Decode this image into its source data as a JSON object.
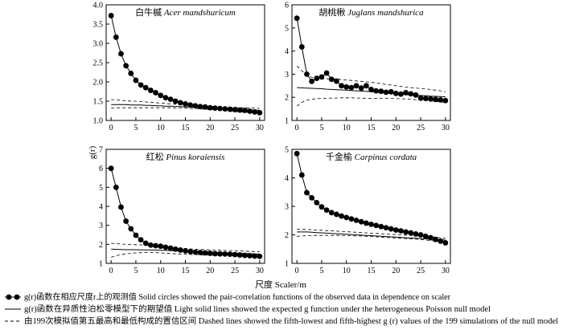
{
  "figure": {
    "y_axis_label": "g(r)",
    "x_axis_label": "尺度 Scaler/m"
  },
  "legend": [
    {
      "kind": "circles",
      "cn": "g(r)函数在相应尺度r上的观测值",
      "en": "Solid circles showed the pair-correlation functions of the observed data in dependence on scaler"
    },
    {
      "kind": "solid",
      "cn": "g(r)函数在异质性泊松零模型下的期望值",
      "en": "Light solid lines showed the expected g function under the heterogeneous Poisson null model"
    },
    {
      "kind": "dashed",
      "cn": "由199次模拟值第五最高和最低构成的置信区间",
      "en": "Dashed lines showed the fifth-lowest and fifth-highest g (r) values of the 199 simulations of the null model"
    }
  ],
  "chart_data": [
    {
      "type": "line",
      "title_cn": "白牛槭",
      "title_latin": "Acer mandshuricum",
      "xlim": [
        -1,
        31
      ],
      "ylim": [
        1.0,
        4.0
      ],
      "xticks": [
        0,
        5,
        10,
        15,
        20,
        25,
        30
      ],
      "yticks": [
        1.0,
        1.5,
        2.0,
        2.5,
        3.0,
        3.5,
        4.0
      ],
      "x": [
        0,
        1,
        2,
        3,
        4,
        5,
        6,
        7,
        8,
        9,
        10,
        11,
        12,
        13,
        14,
        15,
        16,
        17,
        18,
        19,
        20,
        21,
        22,
        23,
        24,
        25,
        26,
        27,
        28,
        29,
        30
      ],
      "series": [
        {
          "name": "observed",
          "values": [
            3.72,
            3.16,
            2.73,
            2.42,
            2.22,
            2.04,
            1.92,
            1.85,
            1.78,
            1.72,
            1.65,
            1.59,
            1.55,
            1.5,
            1.46,
            1.43,
            1.4,
            1.38,
            1.36,
            1.35,
            1.33,
            1.32,
            1.31,
            1.3,
            1.29,
            1.28,
            1.27,
            1.26,
            1.24,
            1.22,
            1.2
          ]
        },
        {
          "name": "expected",
          "values": [
            1.41,
            1.41,
            1.41,
            1.41,
            1.4,
            1.4,
            1.4,
            1.39,
            1.39,
            1.38,
            1.38,
            1.37,
            1.37,
            1.36,
            1.36,
            1.35,
            1.35,
            1.34,
            1.34,
            1.33,
            1.32,
            1.32,
            1.31,
            1.31,
            1.3,
            1.29,
            1.29,
            1.28,
            1.27,
            1.27,
            1.26
          ]
        },
        {
          "name": "upper",
          "values": [
            1.54,
            1.54,
            1.52,
            1.51,
            1.5,
            1.5,
            1.49,
            1.48,
            1.47,
            1.46,
            1.45,
            1.44,
            1.43,
            1.42,
            1.41,
            1.4,
            1.39,
            1.38,
            1.37,
            1.37,
            1.36,
            1.36,
            1.35,
            1.35,
            1.34,
            1.34,
            1.33,
            1.33,
            1.32,
            1.32,
            1.31
          ]
        },
        {
          "name": "lower",
          "values": [
            1.32,
            1.33,
            1.33,
            1.33,
            1.33,
            1.33,
            1.33,
            1.33,
            1.33,
            1.33,
            1.33,
            1.33,
            1.33,
            1.32,
            1.32,
            1.32,
            1.31,
            1.31,
            1.3,
            1.29,
            1.28,
            1.27,
            1.26,
            1.25,
            1.24,
            1.23,
            1.22,
            1.21,
            1.21,
            1.2,
            1.19
          ]
        }
      ]
    },
    {
      "type": "line",
      "title_cn": "胡桃楸",
      "title_latin": "Juglans mandshurica",
      "xlim": [
        -1,
        31
      ],
      "ylim": [
        1.0,
        6.0
      ],
      "xticks": [
        0,
        5,
        10,
        15,
        20,
        25,
        30
      ],
      "yticks": [
        1,
        2,
        3,
        4,
        5,
        6
      ],
      "x": [
        0,
        1,
        2,
        3,
        4,
        5,
        6,
        7,
        8,
        9,
        10,
        11,
        12,
        13,
        14,
        15,
        16,
        17,
        18,
        19,
        20,
        21,
        22,
        23,
        24,
        25,
        26,
        27,
        28,
        29,
        30
      ],
      "series": [
        {
          "name": "observed",
          "values": [
            5.42,
            4.18,
            3.0,
            2.69,
            2.82,
            2.88,
            3.05,
            2.78,
            2.7,
            2.5,
            2.45,
            2.42,
            2.5,
            2.4,
            2.5,
            2.34,
            2.28,
            2.26,
            2.22,
            2.24,
            2.17,
            2.14,
            2.2,
            2.15,
            2.1,
            1.96,
            1.95,
            1.93,
            1.91,
            1.89,
            1.86
          ]
        },
        {
          "name": "expected",
          "values": [
            2.42,
            2.41,
            2.4,
            2.39,
            2.38,
            2.37,
            2.35,
            2.34,
            2.33,
            2.32,
            2.31,
            2.29,
            2.28,
            2.27,
            2.26,
            2.24,
            2.22,
            2.2,
            2.18,
            2.17,
            2.15,
            2.14,
            2.12,
            2.1,
            2.09,
            2.08,
            2.07,
            2.05,
            2.04,
            2.03,
            2.02
          ]
        },
        {
          "name": "upper",
          "values": [
            3.35,
            3.15,
            2.97,
            2.86,
            2.81,
            2.8,
            2.8,
            2.8,
            2.79,
            2.77,
            2.75,
            2.73,
            2.71,
            2.69,
            2.67,
            2.65,
            2.62,
            2.59,
            2.56,
            2.53,
            2.5,
            2.47,
            2.44,
            2.42,
            2.4,
            2.38,
            2.36,
            2.34,
            2.31,
            2.28,
            2.24
          ]
        },
        {
          "name": "lower",
          "values": [
            1.62,
            1.78,
            1.88,
            1.92,
            1.94,
            1.95,
            1.96,
            1.97,
            1.97,
            1.98,
            1.98,
            1.98,
            1.97,
            1.97,
            1.96,
            1.96,
            1.96,
            1.95,
            1.95,
            1.95,
            1.94,
            1.94,
            1.93,
            1.92,
            1.9,
            1.88,
            1.86,
            1.84,
            1.82,
            1.8,
            1.78
          ]
        }
      ]
    },
    {
      "type": "line",
      "title_cn": "红松",
      "title_latin": "Pinus koraiensis",
      "xlim": [
        -1,
        31
      ],
      "ylim": [
        1.0,
        7.0
      ],
      "xticks": [
        0,
        5,
        10,
        15,
        20,
        25,
        30
      ],
      "yticks": [
        1,
        2,
        3,
        4,
        5,
        6,
        7
      ],
      "x": [
        0,
        1,
        2,
        3,
        4,
        5,
        6,
        7,
        8,
        9,
        10,
        11,
        12,
        13,
        14,
        15,
        16,
        17,
        18,
        19,
        20,
        21,
        22,
        23,
        24,
        25,
        26,
        27,
        28,
        29,
        30
      ],
      "series": [
        {
          "name": "observed",
          "values": [
            6.0,
            5.0,
            3.96,
            3.22,
            2.82,
            2.48,
            2.24,
            2.06,
            1.96,
            1.93,
            1.9,
            1.85,
            1.8,
            1.75,
            1.7,
            1.66,
            1.62,
            1.59,
            1.57,
            1.55,
            1.53,
            1.51,
            1.5,
            1.49,
            1.48,
            1.46,
            1.44,
            1.42,
            1.4,
            1.38,
            1.37
          ]
        },
        {
          "name": "expected",
          "values": [
            1.75,
            1.74,
            1.73,
            1.72,
            1.72,
            1.72,
            1.71,
            1.71,
            1.7,
            1.7,
            1.69,
            1.68,
            1.67,
            1.66,
            1.65,
            1.64,
            1.63,
            1.62,
            1.61,
            1.6,
            1.59,
            1.58,
            1.57,
            1.56,
            1.55,
            1.54,
            1.53,
            1.52,
            1.51,
            1.5,
            1.49
          ]
        },
        {
          "name": "upper",
          "values": [
            2.05,
            2.04,
            2.02,
            2.0,
            1.99,
            1.98,
            1.97,
            1.96,
            1.95,
            1.93,
            1.9,
            1.88,
            1.85,
            1.82,
            1.8,
            1.78,
            1.76,
            1.74,
            1.73,
            1.72,
            1.71,
            1.7,
            1.69,
            1.68,
            1.67,
            1.66,
            1.65,
            1.64,
            1.63,
            1.62,
            1.61
          ]
        },
        {
          "name": "lower",
          "values": [
            1.32,
            1.4,
            1.46,
            1.5,
            1.53,
            1.55,
            1.56,
            1.57,
            1.57,
            1.56,
            1.55,
            1.53,
            1.52,
            1.5,
            1.49,
            1.48,
            1.47,
            1.46,
            1.45,
            1.44,
            1.43,
            1.42,
            1.41,
            1.4,
            1.39,
            1.38,
            1.37,
            1.36,
            1.35,
            1.34,
            1.33
          ]
        }
      ]
    },
    {
      "type": "line",
      "title_cn": "千金榆",
      "title_latin": "Carpinus cordata",
      "xlim": [
        -1,
        31
      ],
      "ylim": [
        1.0,
        5.0
      ],
      "xticks": [
        0,
        5,
        10,
        15,
        20,
        25,
        30
      ],
      "yticks": [
        1,
        2,
        3,
        4,
        5
      ],
      "x": [
        0,
        1,
        2,
        3,
        4,
        5,
        6,
        7,
        8,
        9,
        10,
        11,
        12,
        13,
        14,
        15,
        16,
        17,
        18,
        19,
        20,
        21,
        22,
        23,
        24,
        25,
        26,
        27,
        28,
        29,
        30
      ],
      "series": [
        {
          "name": "observed",
          "values": [
            4.85,
            4.1,
            3.48,
            3.3,
            3.13,
            2.98,
            2.87,
            2.78,
            2.72,
            2.66,
            2.61,
            2.56,
            2.51,
            2.46,
            2.41,
            2.37,
            2.33,
            2.29,
            2.25,
            2.21,
            2.17,
            2.14,
            2.1,
            2.07,
            2.03,
            2.0,
            1.95,
            1.9,
            1.84,
            1.78,
            1.72
          ]
        },
        {
          "name": "expected",
          "values": [
            2.1,
            2.1,
            2.1,
            2.09,
            2.08,
            2.07,
            2.06,
            2.05,
            2.04,
            2.03,
            2.02,
            2.01,
            2.0,
            1.99,
            1.98,
            1.97,
            1.96,
            1.95,
            1.94,
            1.93,
            1.92,
            1.91,
            1.9,
            1.89,
            1.88,
            1.87,
            1.86,
            1.85,
            1.84,
            1.83,
            1.82
          ]
        },
        {
          "name": "upper",
          "values": [
            2.2,
            2.2,
            2.19,
            2.18,
            2.17,
            2.16,
            2.15,
            2.14,
            2.13,
            2.12,
            2.11,
            2.1,
            2.09,
            2.08,
            2.07,
            2.06,
            2.05,
            2.04,
            2.03,
            2.02,
            2.01,
            2.0,
            1.99,
            1.98,
            1.97,
            1.96,
            1.95,
            1.94,
            1.92,
            1.9,
            1.88
          ]
        },
        {
          "name": "lower",
          "values": [
            1.95,
            1.96,
            1.97,
            1.98,
            1.98,
            1.98,
            1.98,
            1.98,
            1.98,
            1.98,
            1.97,
            1.97,
            1.96,
            1.96,
            1.95,
            1.94,
            1.93,
            1.92,
            1.91,
            1.9,
            1.89,
            1.88,
            1.87,
            1.86,
            1.85,
            1.84,
            1.82,
            1.8,
            1.78,
            1.76,
            1.74
          ]
        }
      ]
    }
  ]
}
